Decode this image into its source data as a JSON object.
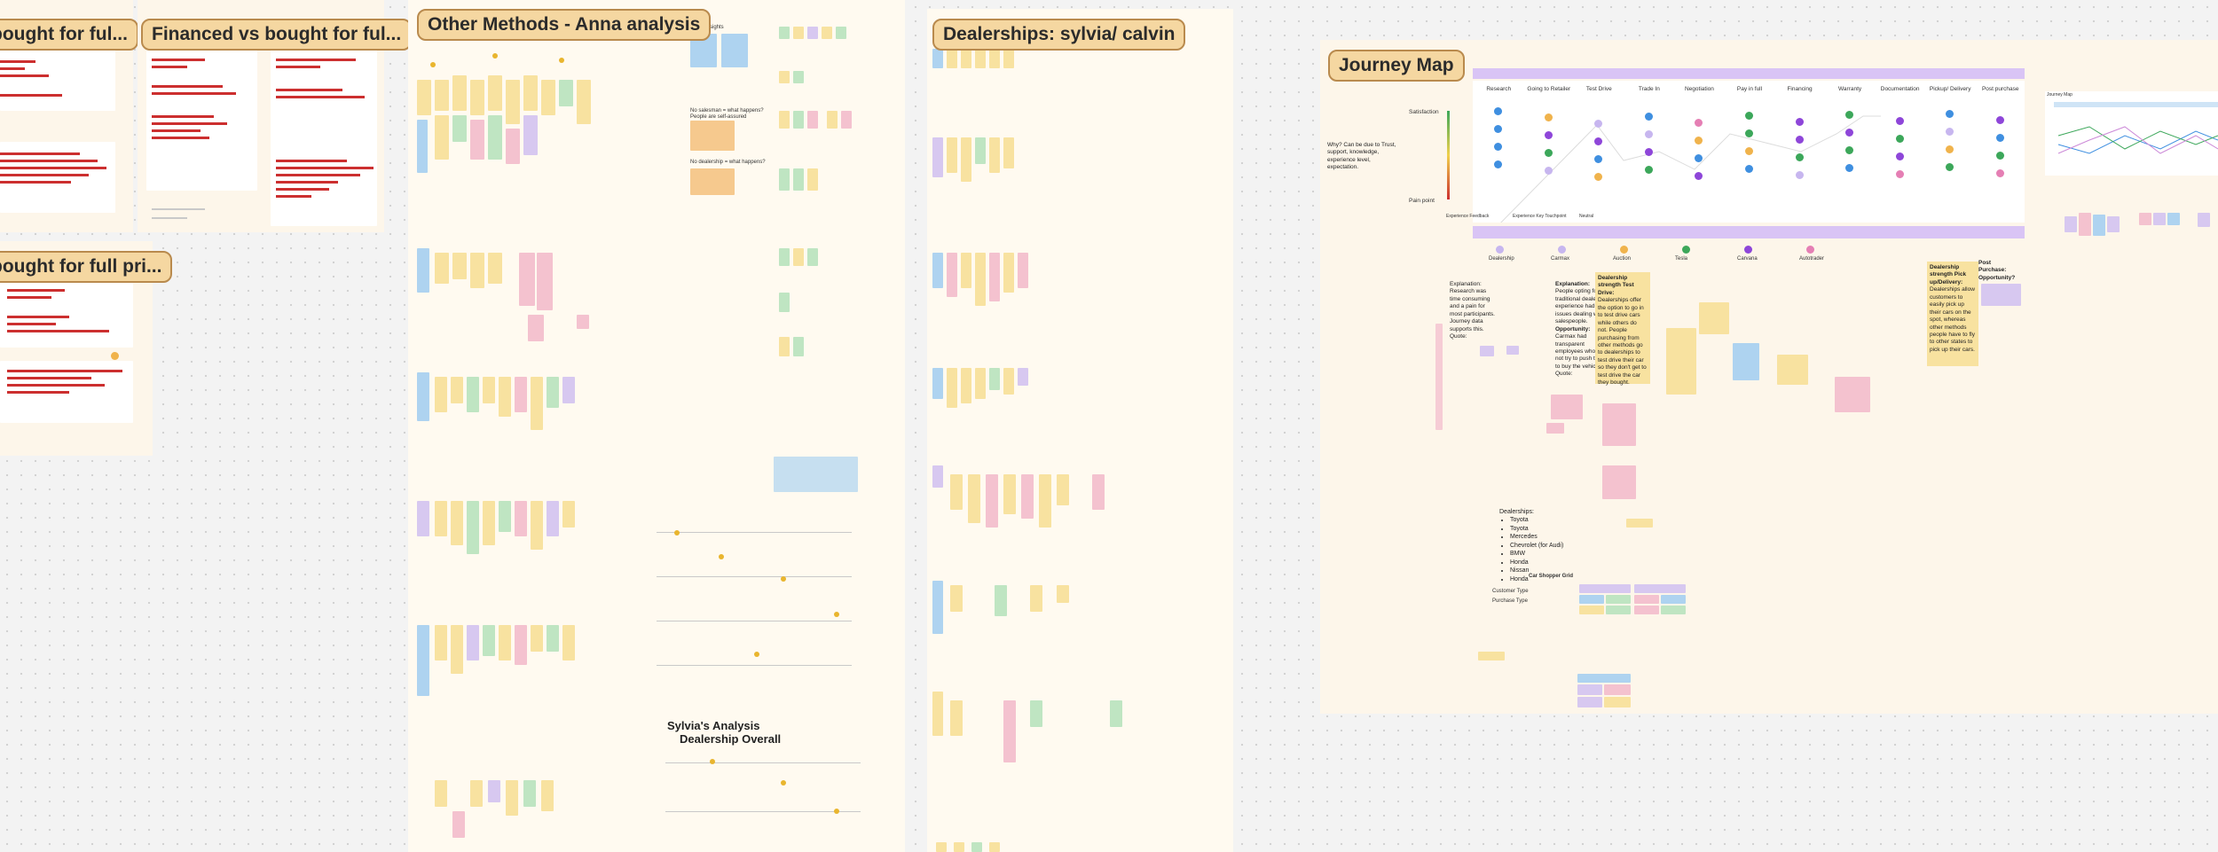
{
  "canvas": {
    "background": "#f3f3f3",
    "section_fill": "#fdf6ea",
    "title_fill": "#f5d7a1",
    "title_border": "#b98a4d"
  },
  "sections": {
    "s1_title": "bought for ful...",
    "s2_title": "Financed vs bought for ful...",
    "s3_title": "bought for full pri...",
    "other_methods_title": "Other Methods - Anna analysis",
    "dealerships_title": "Dealerships: sylvia/ calvin",
    "journey_title": "Journey Map"
  },
  "anna": {
    "insights": "Insights",
    "q1": "No salesman = what happens?",
    "q1b": "People are self-assured",
    "q2": "No dealership = what happens?"
  },
  "sylvia": {
    "heading_line1": "Sylvia's Analysis",
    "heading_line2": "Dealership Overall"
  },
  "journey": {
    "stages": [
      "Research",
      "Going to Retailer",
      "Test Drive",
      "Trade In",
      "Negotiation",
      "Pay in full",
      "Financing",
      "Warranty",
      "Documentation",
      "Pickup/ Delivery",
      "Post purchase"
    ],
    "satisfaction": "Satisfaction",
    "pain_point": "Pain point",
    "why_text": "Why? Can be due to Trust, support, knowledge, experience level, expectation.",
    "legend": [
      "Experience Feedback",
      "Experience Key Touchpoint",
      "Neutral"
    ],
    "channels": [
      "Dealership",
      "Carmax",
      "Auction",
      "Tesla",
      "Carvana",
      "Autotrader"
    ],
    "explanation_1": "Explanation: Research was time consuming and a pain for most participants. Journey data supports this. Quote:",
    "explanation_2_title": "Explanation:",
    "explanation_2": "People opting for traditional dealership experience had issues dealing with salespeople.",
    "opportunity_title": "Opportunity:",
    "opportunity": "Carmax had transparent employees who did not try to push them to buy the vehicle. Quote:",
    "test_drive_title": "Dealership strength Test Drive:",
    "test_drive": "Dealerships offer the option to go in to test drive cars while others do not. People purchasing from other methods go to dealerships to test drive their car so they don't get to test drive the car they bought.",
    "pickup_title": "Dealership strength Pick up/Delivery:",
    "pickup": "Dealerships allow customers to easily pick up their cars on the spot, whereas other methods people have to fly to other states to pick up their cars.",
    "post_purchase_title": "Post Purchase: Opportunity?",
    "dealerships_label": "Dealerships:",
    "dealership_list": [
      "Toyota",
      "Toyota",
      "Mercedes",
      "Chevrolet (for Audi)",
      "BMW",
      "Honda",
      "Nissan",
      "Honda"
    ],
    "car_shopper_grid": "Car Shopper Grid",
    "customer_type": "Customer Type",
    "purchase_type": "Purchase Type",
    "journey_thumb": "Journey Map"
  }
}
